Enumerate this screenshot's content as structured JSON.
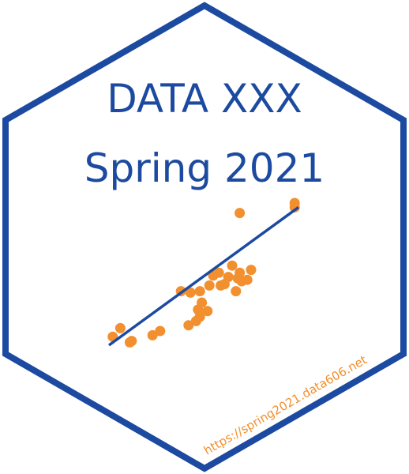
{
  "sticker": {
    "title_line1": "DATA XXX",
    "title_line2": "Spring 2021",
    "url": "https://spring2021.data606.net"
  },
  "colors": {
    "border": "#1c4aa0",
    "text": "#1c4aa0",
    "points": "#f28f2e",
    "trend_line": "#1c4aa0",
    "url": "#f28f2e",
    "background": "#ffffff"
  },
  "scatter": {
    "points": [
      [
        0.02,
        0.06
      ],
      [
        0.06,
        0.12
      ],
      [
        0.11,
        0.02
      ],
      [
        0.12,
        0.03
      ],
      [
        0.23,
        0.07
      ],
      [
        0.27,
        0.1
      ],
      [
        0.38,
        0.38
      ],
      [
        0.42,
        0.14
      ],
      [
        0.43,
        0.37
      ],
      [
        0.46,
        0.17
      ],
      [
        0.47,
        0.25
      ],
      [
        0.48,
        0.2
      ],
      [
        0.48,
        0.38
      ],
      [
        0.49,
        0.3
      ],
      [
        0.52,
        0.24
      ],
      [
        0.53,
        0.42
      ],
      [
        0.55,
        0.49
      ],
      [
        0.58,
        0.51
      ],
      [
        0.59,
        0.42
      ],
      [
        0.61,
        0.43
      ],
      [
        0.63,
        0.48
      ],
      [
        0.65,
        0.56
      ],
      [
        0.67,
        0.38
      ],
      [
        0.68,
        0.47
      ],
      [
        0.69,
        0.51
      ],
      [
        0.7,
        0.45
      ],
      [
        0.73,
        0.46
      ],
      [
        0.75,
        0.53
      ],
      [
        0.69,
        0.93
      ],
      [
        0.98,
        0.97
      ],
      [
        0.98,
        1.0
      ]
    ],
    "trend": [
      [
        0.0,
        0.0
      ],
      [
        1.0,
        0.97
      ]
    ]
  }
}
